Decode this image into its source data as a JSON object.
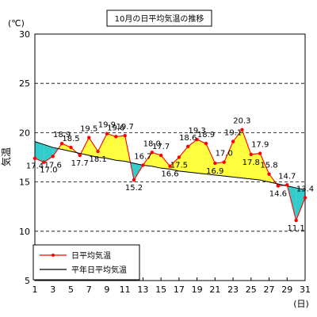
{
  "title": "10月の日平均気温の推移",
  "chart_data": {
    "type": "line",
    "title": "10月の日平均気温の推移",
    "unit": "(℃)",
    "ylabel": "気温",
    "xlabel": "(日)",
    "ylim": [
      5,
      30
    ],
    "yticks": [
      5,
      10,
      15,
      20,
      25,
      30
    ],
    "xlim": [
      1,
      31
    ],
    "xticks": [
      1,
      3,
      5,
      7,
      9,
      11,
      13,
      15,
      17,
      19,
      21,
      23,
      25,
      27,
      29,
      31
    ],
    "grid": true,
    "legend_position": "bottom-left",
    "x": [
      1,
      2,
      3,
      4,
      5,
      6,
      7,
      8,
      9,
      10,
      11,
      12,
      13,
      14,
      15,
      16,
      17,
      18,
      19,
      20,
      21,
      22,
      23,
      24,
      25,
      26,
      27,
      28,
      29,
      30,
      31
    ],
    "series": [
      {
        "name": "日平均気温",
        "color": "#ff0000",
        "values": [
          17.4,
          17.0,
          17.6,
          18.9,
          18.5,
          17.7,
          19.5,
          18.1,
          19.9,
          19.6,
          19.7,
          15.2,
          16.7,
          18.0,
          17.7,
          16.6,
          17.5,
          18.6,
          19.3,
          18.9,
          16.9,
          17.0,
          19.1,
          20.3,
          17.8,
          17.9,
          15.8,
          14.6,
          14.7,
          11.1,
          13.4
        ]
      },
      {
        "name": "平年日平均気温",
        "color": "#000000",
        "values": [
          19.1,
          18.8,
          18.5,
          18.3,
          18.1,
          17.9,
          17.7,
          17.5,
          17.4,
          17.2,
          17.1,
          16.9,
          16.7,
          16.6,
          16.4,
          16.3,
          16.1,
          16.0,
          15.9,
          15.8,
          15.7,
          15.6,
          15.5,
          15.4,
          15.3,
          15.2,
          15.0,
          14.8,
          14.6,
          14.4,
          14.2
        ]
      }
    ],
    "data_labels": [
      "17.4",
      "17.0",
      "17.6",
      "18.9",
      "18.5",
      "17.7",
      "19.5",
      "18.1",
      "19.9",
      "19.6",
      "19.7",
      "15.2",
      "16.7",
      "18.0",
      "17.7",
      "16.6",
      "17.5",
      "18.6",
      "19.3",
      "18.9",
      "16.9",
      "17.0",
      "19.1",
      "20.3",
      "17.8",
      "17.9",
      "15.8",
      "14.6",
      "14.7",
      "11.1",
      "13.4"
    ],
    "fill_above_color": "#ffff40",
    "fill_below_color": "#33cccc"
  }
}
